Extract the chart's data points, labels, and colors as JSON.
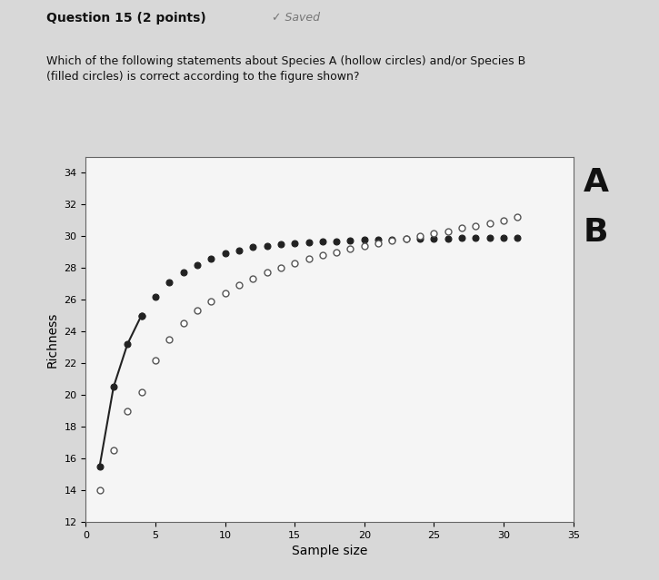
{
  "title_question": "Question 15 (2 points)",
  "title_saved": "✓ Saved",
  "subtitle": "Which of the following statements about Species A (hollow circles) and/or Species B\n(filled circles) is correct according to the figure shown?",
  "ylabel": "Richness",
  "xlabel": "Sample size",
  "ylim": [
    12,
    35
  ],
  "xlim": [
    0,
    35
  ],
  "yticks": [
    12,
    14,
    16,
    18,
    20,
    22,
    24,
    26,
    28,
    30,
    32,
    34
  ],
  "xticks": [
    0,
    5,
    10,
    15,
    20,
    25,
    30,
    35
  ],
  "label_A": "A",
  "label_B": "B",
  "bg_color": "#d8d8d8",
  "plot_bg_color": "#f5f5f5",
  "species_A_x": [
    1,
    2,
    3,
    4,
    5,
    6,
    7,
    8,
    9,
    10,
    11,
    12,
    13,
    14,
    15,
    16,
    17,
    18,
    19,
    20,
    21,
    22,
    23,
    24,
    25,
    26,
    27,
    28,
    29,
    30,
    31
  ],
  "species_A_y": [
    14.0,
    16.5,
    19.0,
    20.2,
    22.2,
    23.5,
    24.5,
    25.3,
    25.9,
    26.4,
    26.9,
    27.3,
    27.7,
    28.0,
    28.3,
    28.6,
    28.8,
    29.0,
    29.2,
    29.4,
    29.55,
    29.7,
    29.85,
    30.0,
    30.15,
    30.3,
    30.5,
    30.65,
    30.8,
    31.0,
    31.2
  ],
  "species_B_x": [
    1,
    2,
    3,
    4,
    5,
    6,
    7,
    8,
    9,
    10,
    11,
    12,
    13,
    14,
    15,
    16,
    17,
    18,
    19,
    20,
    21,
    22,
    23,
    24,
    25,
    26,
    27,
    28,
    29,
    30,
    31
  ],
  "species_B_y": [
    15.5,
    20.5,
    23.2,
    25.0,
    26.2,
    27.1,
    27.7,
    28.2,
    28.6,
    28.9,
    29.1,
    29.3,
    29.4,
    29.5,
    29.55,
    29.6,
    29.65,
    29.68,
    29.72,
    29.75,
    29.77,
    29.79,
    29.81,
    29.83,
    29.84,
    29.85,
    29.86,
    29.87,
    29.88,
    29.89,
    29.9
  ],
  "line_connected_up_to": 4,
  "marker_size": 5,
  "line_color_B": "#222222",
  "hollow_edge_color": "#555555",
  "filled_color": "#222222",
  "title_fontsize": 10,
  "subtitle_fontsize": 9,
  "axis_label_fontsize": 10,
  "tick_fontsize": 8,
  "AB_fontsize": 26
}
